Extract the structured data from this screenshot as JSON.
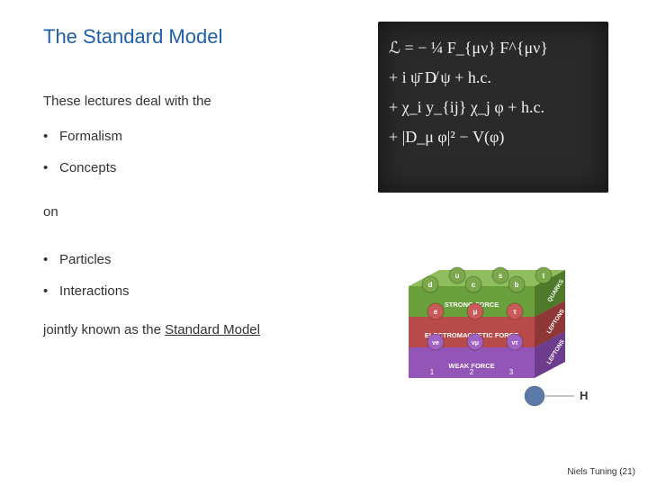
{
  "title": "The Standard Model",
  "intro": "These lectures deal with the",
  "bullets1": {
    "0": "Formalism",
    "1": "Concepts"
  },
  "on_text": "on",
  "bullets2": {
    "0": "Particles",
    "1": "Interactions"
  },
  "summary_prefix": "jointly known as the ",
  "summary_emph": "Standard Model",
  "footer": "Niels Tuning (21)",
  "chalkboard": {
    "bg": "#2a2a2a",
    "fg": "#f2f2f2",
    "eq1": "ℒ = − ¼ F_{μν} F^{μν}",
    "eq2": "+ i ψ̄ D̸ ψ + h.c.",
    "eq3": "+ χ_i y_{ij} χ_j φ + h.c.",
    "eq4": "+ |D_μ φ|² − V(φ)"
  },
  "cube": {
    "layers": [
      {
        "label": "STRONG FORCE",
        "color_top": "#8fbf5c",
        "color_front": "#6aa03c",
        "color_side": "#4f7a2c"
      },
      {
        "label": "ELECTROMAGNETIC FORCE",
        "color_top": "#d96b6b",
        "color_front": "#b94a4a",
        "color_side": "#8f3636"
      },
      {
        "label": "WEAK FORCE",
        "color_top": "#b87adb",
        "color_front": "#9455b8",
        "color_side": "#6e3c8c"
      }
    ],
    "particles": {
      "row0": [
        "d",
        "u",
        "c",
        "s",
        "b",
        "t"
      ],
      "row1": [
        "e",
        "μ",
        "τ"
      ],
      "row2": [
        "νe",
        "νμ",
        "ντ"
      ]
    },
    "row_colors": [
      "#7aa84a",
      "#c85a5a",
      "#a063c4"
    ],
    "side_labels": [
      "QUARKS",
      "LEPTONS",
      "LEPTONS"
    ],
    "side_label_colors": [
      "#b04848",
      "#7a4fa0",
      "#5a3a7a"
    ],
    "weak_nums": [
      "1",
      "2",
      "3"
    ],
    "higgs_label": "H",
    "higgs_color": "#5a7aa8"
  }
}
